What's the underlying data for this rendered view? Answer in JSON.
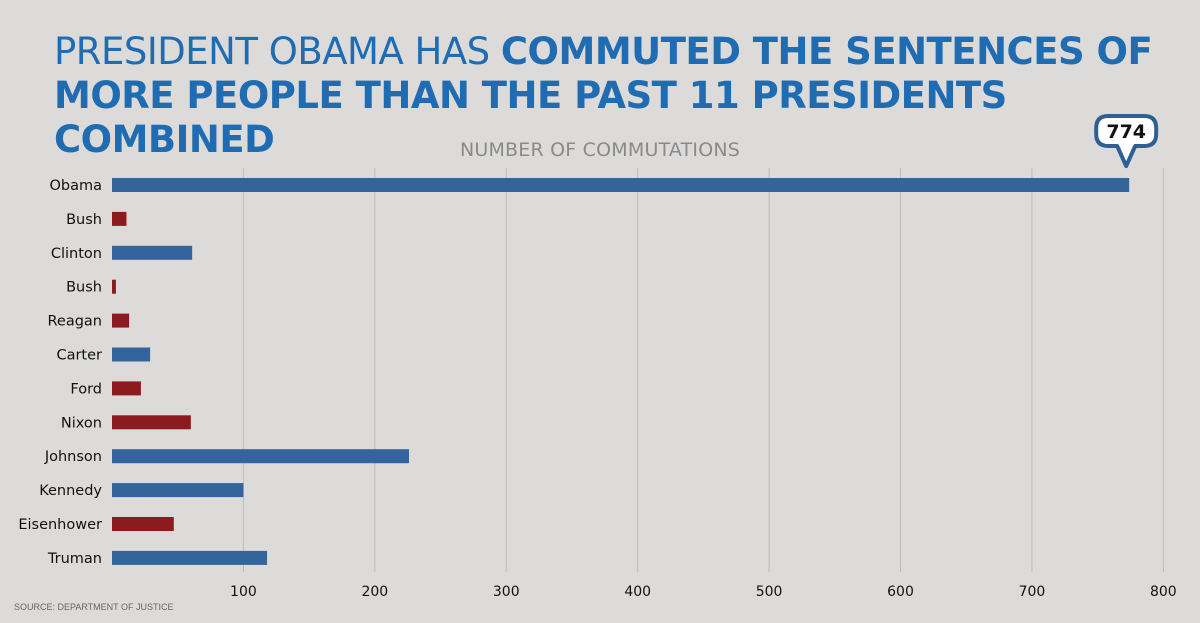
{
  "title": {
    "normal": "PRESIDENT OBAMA HAS ",
    "bold": "COMMUTED THE SENTENCES OF MORE PEOPLE THAN THE PAST 11 PRESIDENTS COMBINED"
  },
  "source": "SOURCE: DEPARTMENT OF JUSTICE",
  "colors": {
    "blue": "#33649b",
    "red": "#8c1b1f",
    "title": "#1f6cb3",
    "callout_border": "#2f5f93",
    "grid": "#bdbcbb"
  },
  "chart_data": {
    "type": "bar",
    "orientation": "horizontal",
    "title": "NUMBER OF COMMUTATIONS",
    "categories": [
      "Obama",
      "Bush",
      "Clinton",
      "Bush",
      "Reagan",
      "Carter",
      "Ford",
      "Nixon",
      "Johnson",
      "Kennedy",
      "Eisenhower",
      "Truman"
    ],
    "values": [
      774,
      11,
      61,
      3,
      13,
      29,
      22,
      60,
      226,
      100,
      47,
      118
    ],
    "parties": [
      "D",
      "R",
      "D",
      "R",
      "R",
      "D",
      "R",
      "R",
      "D",
      "D",
      "R",
      "D"
    ],
    "xticks": [
      100,
      200,
      300,
      400,
      500,
      600,
      700,
      800
    ],
    "xlim": [
      0,
      800
    ],
    "grid": true,
    "annotation": {
      "category": "Obama",
      "value": 774,
      "text": "774"
    }
  }
}
